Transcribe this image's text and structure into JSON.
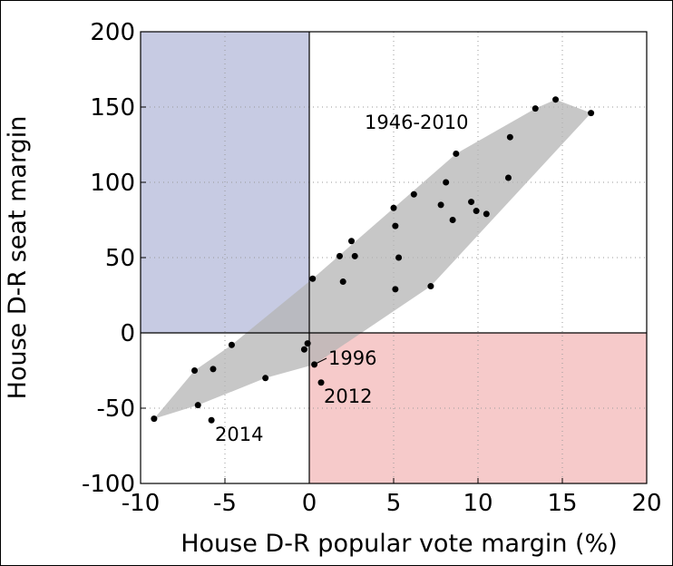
{
  "chart_data": {
    "type": "scatter",
    "x_label": "House D-R popular vote margin (%)",
    "y_label": "House D-R seat margin",
    "xlim": [
      -10,
      20
    ],
    "ylim": [
      -100,
      200
    ],
    "xticks": [
      -10,
      -5,
      0,
      5,
      10,
      15,
      20
    ],
    "yticks": [
      -100,
      -50,
      0,
      50,
      100,
      150,
      200
    ],
    "grid": true,
    "color": "#000000",
    "hull": {
      "color": "#b4b4b4",
      "x": [
        -9.2,
        -6.6,
        -2.6,
        0.3,
        7.2,
        16.7,
        14.6,
        13.4,
        8.7,
        0.2,
        -4.6,
        -6.8
      ],
      "y": [
        -57,
        -48,
        -30,
        -21,
        31,
        146,
        155,
        149,
        119,
        36,
        -8,
        -25
      ]
    },
    "quadrant_colors": {
      "upper_left": "#c7cbe3",
      "lower_right": "#f6caca"
    },
    "x": [
      -9.2,
      -6.8,
      -6.6,
      -5.7,
      -5.8,
      -4.6,
      -2.6,
      -0.3,
      -0.1,
      0.2,
      0.3,
      0.7,
      1.8,
      2.0,
      2.5,
      2.7,
      5.0,
      5.1,
      5.1,
      5.3,
      6.2,
      7.2,
      7.8,
      8.1,
      8.5,
      8.7,
      9.6,
      9.9,
      10.5,
      11.8,
      11.9,
      13.4,
      14.6,
      16.7
    ],
    "values": [
      -57,
      -25,
      -48,
      -24,
      -58,
      -8,
      -30,
      -11,
      -7,
      36,
      -21,
      -33,
      51,
      34,
      61,
      51,
      83,
      71,
      29,
      50,
      92,
      31,
      85,
      100,
      75,
      119,
      87,
      81,
      79,
      103,
      130,
      149,
      155,
      146
    ],
    "annotations": [
      "1946-2010",
      "1996",
      "2012",
      "2014"
    ]
  }
}
